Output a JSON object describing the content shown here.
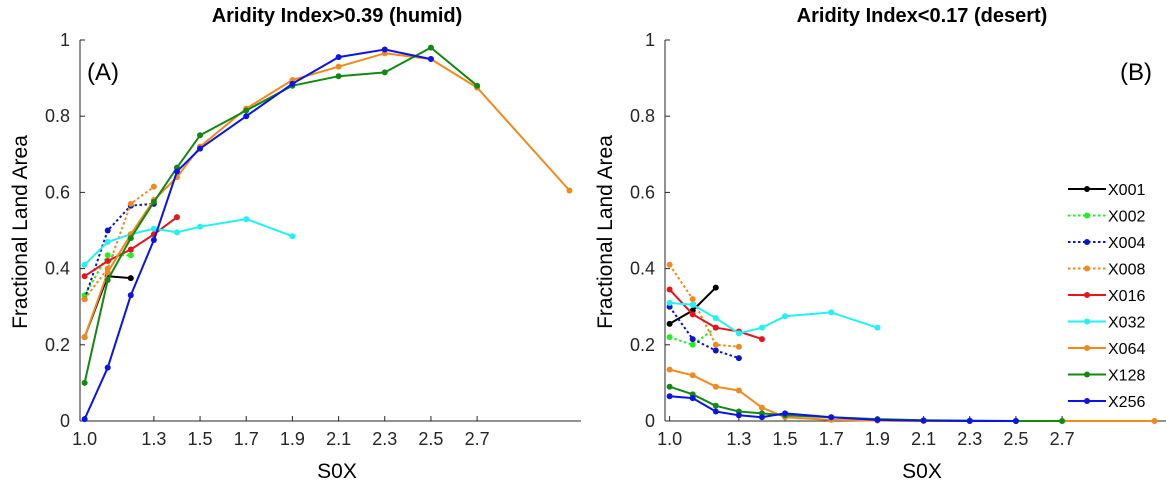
{
  "chart_data": [
    {
      "type": "line",
      "panel_label": "(A)",
      "title": "Aridity Index>0.39 (humid)",
      "xlabel": "S0X",
      "ylabel": "Fractional Land Area",
      "xlim": [
        0.98,
        3.15
      ],
      "ylim": [
        0,
        1
      ],
      "xticks": [
        "1.0",
        "1.3",
        "1.5",
        "1.7",
        "1.9",
        "2.1",
        "2.3",
        "2.5",
        "2.7"
      ],
      "xtick_values": [
        1.0,
        1.3,
        1.5,
        1.7,
        1.9,
        2.1,
        2.3,
        2.5,
        2.7
      ],
      "yticks": [
        "0",
        "0.2",
        "0.4",
        "0.6",
        "0.8",
        "1"
      ],
      "ytick_values": [
        0,
        0.2,
        0.4,
        0.6,
        0.8,
        1
      ],
      "series": [
        {
          "name": "X001",
          "x": [
            1.0,
            1.1,
            1.2
          ],
          "y": [
            0.22,
            0.38,
            0.375
          ]
        },
        {
          "name": "X002",
          "x": [
            1.0,
            1.1,
            1.2
          ],
          "y": [
            0.33,
            0.435,
            0.435
          ]
        },
        {
          "name": "X004",
          "x": [
            1.0,
            1.1,
            1.2,
            1.3
          ],
          "y": [
            0.32,
            0.5,
            0.565,
            0.57
          ]
        },
        {
          "name": "X008",
          "x": [
            1.0,
            1.1,
            1.2,
            1.3
          ],
          "y": [
            0.32,
            0.4,
            0.57,
            0.615
          ]
        },
        {
          "name": "X016",
          "x": [
            1.0,
            1.1,
            1.2,
            1.3,
            1.4
          ],
          "y": [
            0.38,
            0.42,
            0.45,
            0.49,
            0.535
          ]
        },
        {
          "name": "X032",
          "x": [
            1.0,
            1.1,
            1.2,
            1.3,
            1.4,
            1.5,
            1.7,
            1.9
          ],
          "y": [
            0.41,
            0.47,
            0.49,
            0.505,
            0.495,
            0.51,
            0.53,
            0.485
          ]
        },
        {
          "name": "X064",
          "x": [
            1.0,
            1.1,
            1.2,
            1.3,
            1.4,
            1.5,
            1.7,
            1.9,
            2.1,
            2.3,
            2.5,
            2.7,
            3.1
          ],
          "y": [
            0.22,
            0.39,
            0.49,
            0.58,
            0.64,
            0.72,
            0.82,
            0.895,
            0.93,
            0.965,
            0.95,
            0.875,
            0.605
          ]
        },
        {
          "name": "X128",
          "x": [
            1.0,
            1.1,
            1.2,
            1.3,
            1.4,
            1.5,
            1.7,
            1.9,
            2.1,
            2.3,
            2.5,
            2.7
          ],
          "y": [
            0.1,
            0.37,
            0.48,
            0.575,
            0.665,
            0.75,
            0.815,
            0.88,
            0.905,
            0.915,
            0.98,
            0.88
          ]
        },
        {
          "name": "X256",
          "x": [
            1.0,
            1.1,
            1.2,
            1.3,
            1.4,
            1.5,
            1.7,
            1.9,
            2.1,
            2.3,
            2.5
          ],
          "y": [
            0.005,
            0.14,
            0.33,
            0.475,
            0.655,
            0.715,
            0.8,
            0.885,
            0.955,
            0.975,
            0.95
          ]
        }
      ]
    },
    {
      "type": "line",
      "panel_label": "(B)",
      "title": "Aridity Index<0.17 (desert)",
      "xlabel": "S0X",
      "ylabel": "Fractional Land Area",
      "xlim": [
        0.98,
        3.15
      ],
      "ylim": [
        0,
        1
      ],
      "xticks": [
        "1.0",
        "1.3",
        "1.5",
        "1.7",
        "1.9",
        "2.1",
        "2.3",
        "2.5",
        "2.7"
      ],
      "xtick_values": [
        1.0,
        1.3,
        1.5,
        1.7,
        1.9,
        2.1,
        2.3,
        2.5,
        2.7
      ],
      "yticks": [
        "0",
        "0.2",
        "0.4",
        "0.6",
        "0.8",
        "1"
      ],
      "ytick_values": [
        0,
        0.2,
        0.4,
        0.6,
        0.8,
        1
      ],
      "legend": "right",
      "series": [
        {
          "name": "X001",
          "x": [
            1.0,
            1.1,
            1.2
          ],
          "y": [
            0.255,
            0.29,
            0.35
          ]
        },
        {
          "name": "X002",
          "x": [
            1.0,
            1.1,
            1.2
          ],
          "y": [
            0.22,
            0.2,
            0.245
          ]
        },
        {
          "name": "X004",
          "x": [
            1.0,
            1.1,
            1.2,
            1.3
          ],
          "y": [
            0.3,
            0.215,
            0.185,
            0.165
          ]
        },
        {
          "name": "X008",
          "x": [
            1.0,
            1.1,
            1.2,
            1.3
          ],
          "y": [
            0.41,
            0.32,
            0.2,
            0.195
          ]
        },
        {
          "name": "X016",
          "x": [
            1.0,
            1.1,
            1.2,
            1.3,
            1.4
          ],
          "y": [
            0.345,
            0.28,
            0.245,
            0.235,
            0.215
          ]
        },
        {
          "name": "X032",
          "x": [
            1.0,
            1.1,
            1.2,
            1.3,
            1.4,
            1.5,
            1.7,
            1.9
          ],
          "y": [
            0.31,
            0.305,
            0.27,
            0.23,
            0.245,
            0.275,
            0.285,
            0.245
          ]
        },
        {
          "name": "X064",
          "x": [
            1.0,
            1.1,
            1.2,
            1.3,
            1.4,
            1.5,
            1.7,
            1.9,
            2.1,
            2.3,
            2.5,
            2.7,
            3.1
          ],
          "y": [
            0.135,
            0.12,
            0.09,
            0.08,
            0.035,
            0.01,
            0.003,
            0.001,
            0,
            0,
            0,
            0,
            0
          ]
        },
        {
          "name": "X128",
          "x": [
            1.0,
            1.1,
            1.2,
            1.3,
            1.4,
            1.5,
            1.7,
            1.9,
            2.1,
            2.3,
            2.5,
            2.7
          ],
          "y": [
            0.09,
            0.07,
            0.04,
            0.025,
            0.02,
            0.015,
            0.01,
            0.005,
            0.002,
            0.001,
            0,
            0
          ]
        },
        {
          "name": "X256",
          "x": [
            1.0,
            1.1,
            1.2,
            1.3,
            1.4,
            1.5,
            1.7,
            1.9,
            2.1,
            2.3,
            2.5
          ],
          "y": [
            0.065,
            0.06,
            0.025,
            0.015,
            0.01,
            0.02,
            0.01,
            0.003,
            0.001,
            0,
            0
          ]
        }
      ]
    }
  ],
  "series_styles": {
    "X001": {
      "color": "#000000",
      "dash": "solid"
    },
    "X002": {
      "color": "#22ee22",
      "dash": "dotted"
    },
    "X004": {
      "color": "#0a14c8",
      "dash": "dotted"
    },
    "X008": {
      "color": "#f08a1c",
      "dash": "dotted"
    },
    "X016": {
      "color": "#e8141c",
      "dash": "solid"
    },
    "X032": {
      "color": "#22f2f2",
      "dash": "solid"
    },
    "X064": {
      "color": "#f08a1c",
      "dash": "solid"
    },
    "X128": {
      "color": "#128a12",
      "dash": "solid"
    },
    "X256": {
      "color": "#0a14e6",
      "dash": "solid"
    }
  }
}
